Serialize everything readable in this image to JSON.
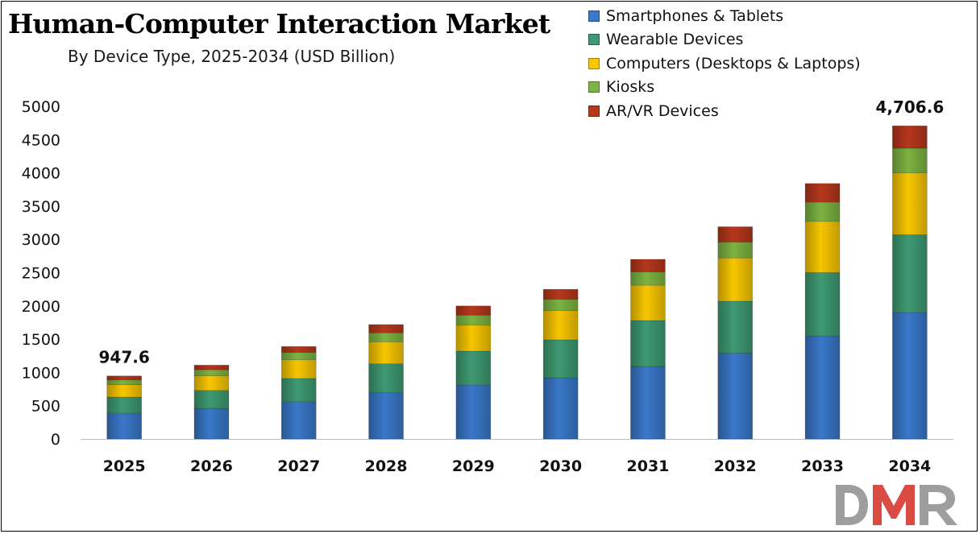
{
  "chart_data": {
    "type": "bar",
    "stacked": true,
    "title": "Human-Computer Interaction Market",
    "subtitle": "By Device Type, 2025-2034 (USD Billion)",
    "xlabel": "",
    "ylabel": "",
    "ylim": [
      0,
      5000
    ],
    "yticks": [
      0,
      500,
      1000,
      1500,
      2000,
      2500,
      3000,
      3500,
      4000,
      4500,
      5000
    ],
    "grid": false,
    "legend_position": "top-right",
    "categories": [
      "2025",
      "2026",
      "2027",
      "2028",
      "2029",
      "2030",
      "2031",
      "2032",
      "2033",
      "2034"
    ],
    "series": [
      {
        "name": "Smartphones & Tablets",
        "color": "#3a78c9",
        "values": [
          390,
          460,
          560,
          700,
          810,
          920,
          1090,
          1290,
          1550,
          1900
        ]
      },
      {
        "name": "Wearable Devices",
        "color": "#3e9a72",
        "values": [
          240,
          270,
          350,
          430,
          510,
          570,
          690,
          780,
          950,
          1170
        ]
      },
      {
        "name": "Computers (Desktops & Laptops)",
        "color": "#f7c600",
        "values": [
          185,
          220,
          280,
          330,
          390,
          440,
          530,
          650,
          770,
          930
        ]
      },
      {
        "name": "Kiosks",
        "color": "#7cb342",
        "values": [
          72,
          90,
          110,
          135,
          150,
          170,
          200,
          240,
          290,
          370
        ]
      },
      {
        "name": "AR/VR Devices",
        "color": "#b5371c",
        "values": [
          60.6,
          70,
          90,
          125,
          140,
          150,
          190,
          230,
          280,
          336.6
        ]
      }
    ],
    "totals": [
      947.6,
      1110,
      1390,
      1720,
      2000,
      2250,
      2700,
      3190,
      3840,
      4706.6
    ],
    "annotations": [
      {
        "category": "2025",
        "text": "947.6"
      },
      {
        "category": "2034",
        "text": "4,706.6"
      }
    ]
  },
  "logo": {
    "text": "DMR"
  }
}
